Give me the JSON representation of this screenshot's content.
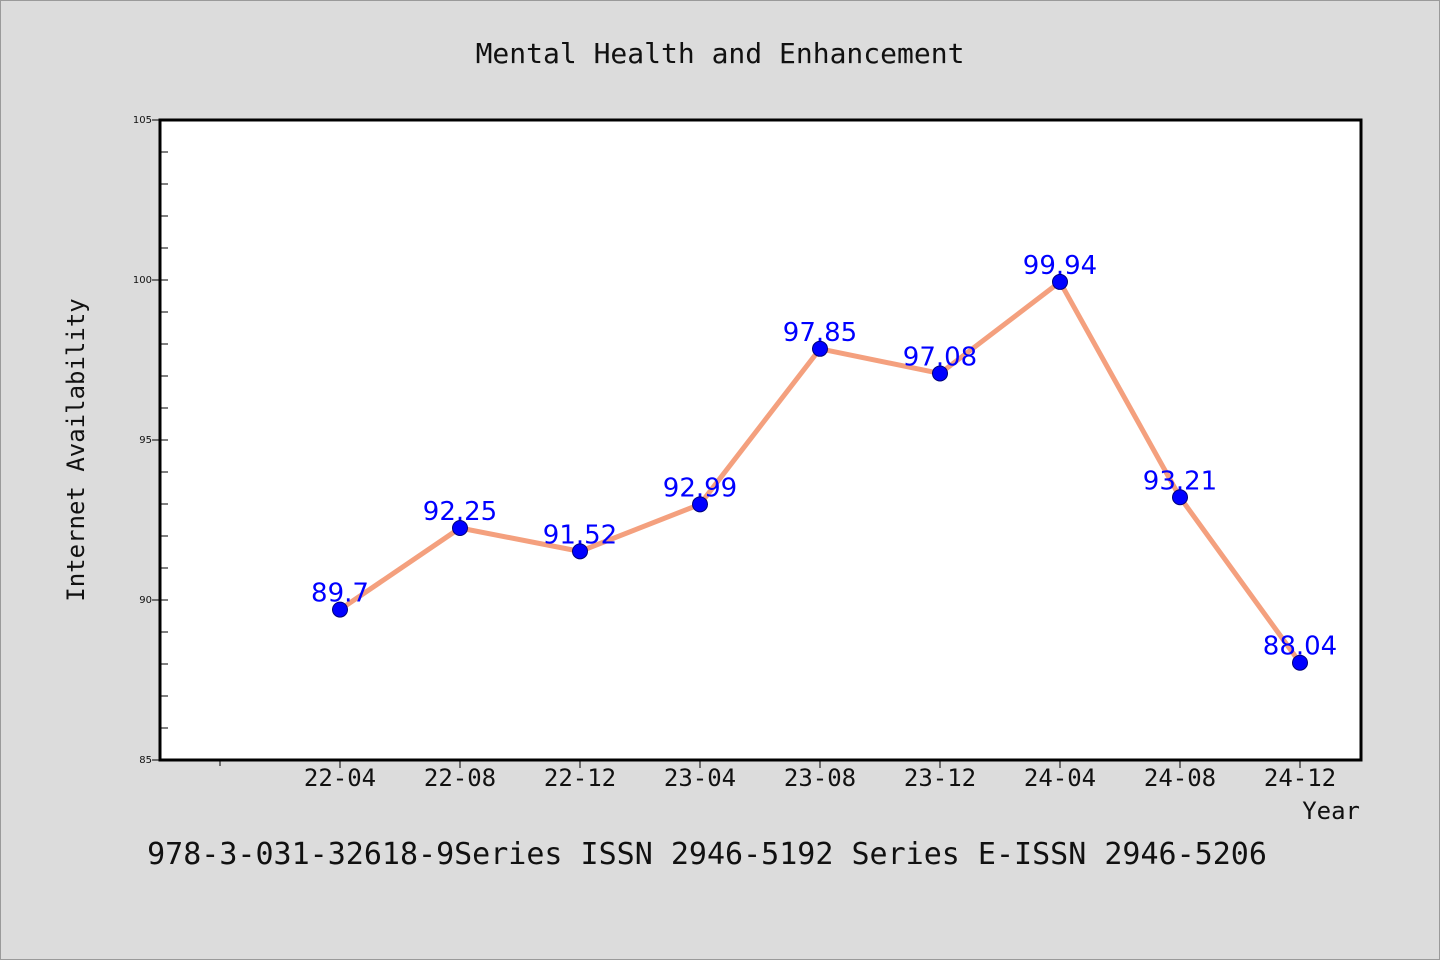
{
  "chart_data": {
    "type": "line",
    "title": "Mental Health and Enhancement",
    "xlabel": "Year",
    "ylabel": "Internet Availability",
    "categories": [
      "22-04",
      "22-08",
      "22-12",
      "23-04",
      "23-08",
      "23-12",
      "24-04",
      "24-08",
      "24-12"
    ],
    "values": [
      89.7,
      92.25,
      91.52,
      92.99,
      97.85,
      97.08,
      99.94,
      93.21,
      88.04
    ],
    "data_labels": [
      "89.7",
      "92.25",
      "91.52",
      "92.99",
      "97.85",
      "97.08",
      "99.94",
      "93.21",
      "88.04"
    ],
    "ylim": [
      85,
      105
    ],
    "yticks": [
      85,
      90,
      95,
      100,
      105
    ],
    "grid": false,
    "line_color": "#f4a07e",
    "marker_color": "#0000ff",
    "label_color": "#0000ff"
  },
  "footer": {
    "text": "978-3-031-32618-9Series ISSN 2946-5192 Series E-ISSN 2946-5206"
  }
}
